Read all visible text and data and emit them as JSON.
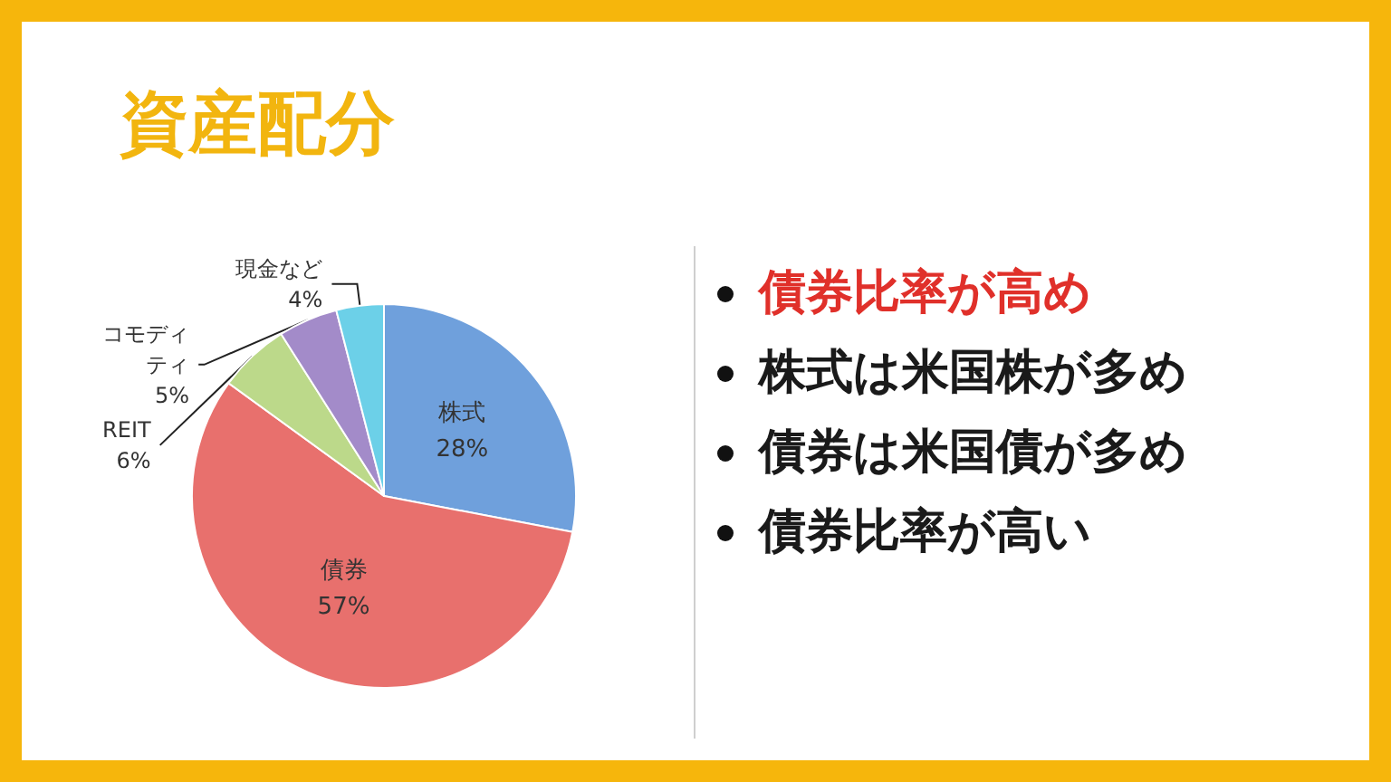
{
  "chart_data": {
    "type": "pie",
    "title": "資産配分",
    "categories": [
      "株式",
      "債券",
      "REIT",
      "コモディティ",
      "現金など"
    ],
    "values": [
      28,
      57,
      6,
      5,
      4
    ],
    "value_labels": [
      "28%",
      "57%",
      "6%",
      "5%",
      "4%"
    ],
    "colors": [
      "#6fa0dc",
      "#e8706d",
      "#bcd98a",
      "#a38bc9",
      "#6cd0e8"
    ],
    "annotations": [
      "債券比率が高め",
      "株式は米国株が多め",
      "債券は米国債が多め",
      "債券比率が高い"
    ]
  }
}
